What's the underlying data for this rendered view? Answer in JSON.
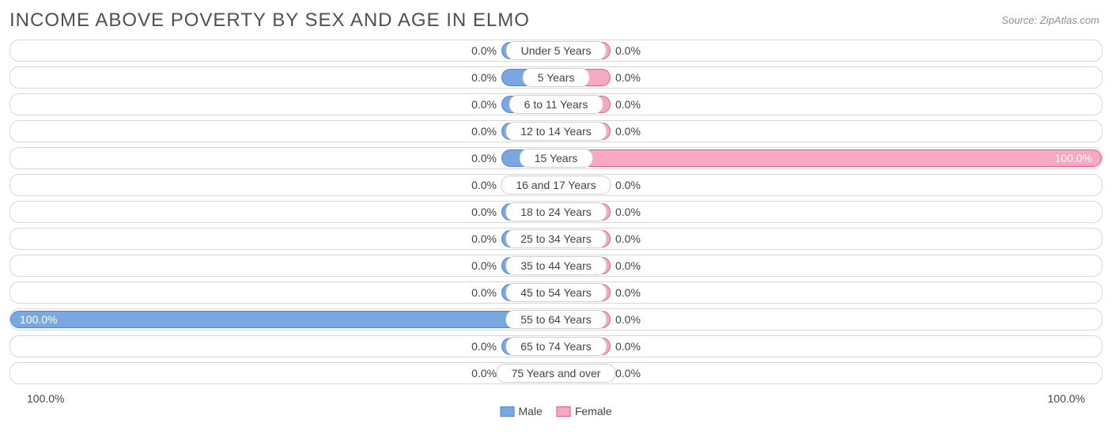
{
  "title": "INCOME ABOVE POVERTY BY SEX AND AGE IN ELMO",
  "source": "Source: ZipAtlas.com",
  "colors": {
    "male_fill": "#7ba7e0",
    "male_border": "#4f86cf",
    "female_fill": "#f7a8c2",
    "female_border": "#e55a8a",
    "row_border": "#d8d8d8",
    "label_border": "#cfcfcf",
    "bg": "#ffffff",
    "text": "#444444"
  },
  "axis": {
    "left": "100.0%",
    "right": "100.0%"
  },
  "legend": [
    {
      "label": "Male",
      "color": "#7ba7e0",
      "border": "#4f86cf"
    },
    {
      "label": "Female",
      "color": "#f7a8c2",
      "border": "#e55a8a"
    }
  ],
  "min_bar_pct": 10.0,
  "rows": [
    {
      "label": "Under 5 Years",
      "male": 0.0,
      "female": 0.0
    },
    {
      "label": "5 Years",
      "male": 0.0,
      "female": 0.0
    },
    {
      "label": "6 to 11 Years",
      "male": 0.0,
      "female": 0.0
    },
    {
      "label": "12 to 14 Years",
      "male": 0.0,
      "female": 0.0
    },
    {
      "label": "15 Years",
      "male": 0.0,
      "female": 100.0
    },
    {
      "label": "16 and 17 Years",
      "male": 0.0,
      "female": 0.0
    },
    {
      "label": "18 to 24 Years",
      "male": 0.0,
      "female": 0.0
    },
    {
      "label": "25 to 34 Years",
      "male": 0.0,
      "female": 0.0
    },
    {
      "label": "35 to 44 Years",
      "male": 0.0,
      "female": 0.0
    },
    {
      "label": "45 to 54 Years",
      "male": 0.0,
      "female": 0.0
    },
    {
      "label": "55 to 64 Years",
      "male": 100.0,
      "female": 0.0
    },
    {
      "label": "65 to 74 Years",
      "male": 0.0,
      "female": 0.0
    },
    {
      "label": "75 Years and over",
      "male": 0.0,
      "female": 0.0
    }
  ]
}
